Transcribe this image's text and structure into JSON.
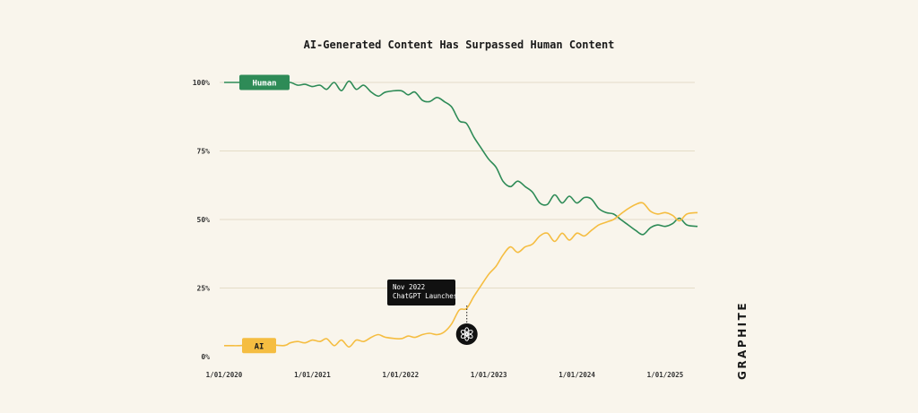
{
  "chart_data": {
    "type": "line",
    "title": "AI-Generated Content Has Surpassed Human Content",
    "xlabel": "",
    "ylabel": "",
    "ylim": [
      0,
      100
    ],
    "yticks": [
      "0%",
      "25%",
      "50%",
      "75%",
      "100%"
    ],
    "xticks": [
      "1/01/2020",
      "1/01/2021",
      "1/01/2022",
      "1/01/2023",
      "1/01/2024",
      "1/01/2025"
    ],
    "grid": true,
    "series": [
      {
        "name": "Human",
        "color": "#2e8b57",
        "points": [
          [
            "2020-01-01",
            100
          ],
          [
            "2020-02-01",
            100
          ],
          [
            "2020-03-01",
            100
          ],
          [
            "2020-06-01",
            100
          ],
          [
            "2020-09-01",
            99.5
          ],
          [
            "2020-10-01",
            100
          ],
          [
            "2020-11-01",
            99
          ],
          [
            "2020-12-01",
            99.3
          ],
          [
            "2021-01-01",
            98.5
          ],
          [
            "2021-02-01",
            99
          ],
          [
            "2021-03-01",
            97.5
          ],
          [
            "2021-04-01",
            100
          ],
          [
            "2021-05-01",
            97
          ],
          [
            "2021-06-01",
            100.5
          ],
          [
            "2021-07-01",
            97.5
          ],
          [
            "2021-08-01",
            99
          ],
          [
            "2021-09-01",
            96.5
          ],
          [
            "2021-10-01",
            95
          ],
          [
            "2021-11-01",
            96.5
          ],
          [
            "2022-01-01",
            97
          ],
          [
            "2022-02-01",
            95.5
          ],
          [
            "2022-03-01",
            96.5
          ],
          [
            "2022-04-01",
            93.5
          ],
          [
            "2022-05-01",
            93
          ],
          [
            "2022-06-01",
            94.5
          ],
          [
            "2022-07-01",
            93
          ],
          [
            "2022-08-01",
            91
          ],
          [
            "2022-09-01",
            86
          ],
          [
            "2022-10-01",
            85
          ],
          [
            "2022-11-01",
            80
          ],
          [
            "2022-12-01",
            76
          ],
          [
            "2023-01-01",
            72
          ],
          [
            "2023-02-01",
            69
          ],
          [
            "2023-03-01",
            64
          ],
          [
            "2023-04-01",
            62
          ],
          [
            "2023-05-01",
            64
          ],
          [
            "2023-06-01",
            62
          ],
          [
            "2023-07-01",
            60
          ],
          [
            "2023-08-01",
            56
          ],
          [
            "2023-09-01",
            55.5
          ],
          [
            "2023-10-01",
            59
          ],
          [
            "2023-11-01",
            56
          ],
          [
            "2023-12-01",
            58.5
          ],
          [
            "2024-01-01",
            56
          ],
          [
            "2024-02-01",
            58
          ],
          [
            "2024-03-01",
            57.5
          ],
          [
            "2024-04-01",
            54
          ],
          [
            "2024-05-01",
            52.5
          ],
          [
            "2024-06-01",
            52
          ],
          [
            "2024-07-01",
            50
          ],
          [
            "2024-08-01",
            48
          ],
          [
            "2024-09-01",
            46
          ],
          [
            "2024-10-01",
            44.5
          ],
          [
            "2024-11-01",
            47
          ],
          [
            "2024-12-01",
            48
          ],
          [
            "2025-01-01",
            47.5
          ],
          [
            "2025-02-01",
            48.5
          ],
          [
            "2025-03-01",
            50.5
          ],
          [
            "2025-04-01",
            48
          ],
          [
            "2025-05-15",
            47.5
          ]
        ]
      },
      {
        "name": "AI",
        "color": "#f5bd41",
        "points": [
          [
            "2020-01-01",
            4
          ],
          [
            "2020-02-01",
            4
          ],
          [
            "2020-03-01",
            4
          ],
          [
            "2020-06-01",
            4.5
          ],
          [
            "2020-09-01",
            4
          ],
          [
            "2020-10-01",
            5
          ],
          [
            "2020-11-01",
            5.5
          ],
          [
            "2020-12-01",
            5
          ],
          [
            "2021-01-01",
            6
          ],
          [
            "2021-02-01",
            5.5
          ],
          [
            "2021-03-01",
            6.5
          ],
          [
            "2021-04-01",
            4
          ],
          [
            "2021-05-01",
            6
          ],
          [
            "2021-06-01",
            3.5
          ],
          [
            "2021-07-01",
            6
          ],
          [
            "2021-08-01",
            5.5
          ],
          [
            "2021-09-01",
            7
          ],
          [
            "2021-10-01",
            8
          ],
          [
            "2021-11-01",
            7
          ],
          [
            "2022-01-01",
            6.5
          ],
          [
            "2022-02-01",
            7.5
          ],
          [
            "2022-03-01",
            7
          ],
          [
            "2022-04-01",
            8
          ],
          [
            "2022-05-01",
            8.5
          ],
          [
            "2022-06-01",
            8
          ],
          [
            "2022-07-01",
            9
          ],
          [
            "2022-08-01",
            12
          ],
          [
            "2022-09-01",
            17
          ],
          [
            "2022-10-01",
            17.5
          ],
          [
            "2022-11-01",
            22
          ],
          [
            "2022-12-01",
            26
          ],
          [
            "2023-01-01",
            30
          ],
          [
            "2023-02-01",
            33
          ],
          [
            "2023-03-01",
            37
          ],
          [
            "2023-04-01",
            40
          ],
          [
            "2023-05-01",
            38
          ],
          [
            "2023-06-01",
            40
          ],
          [
            "2023-07-01",
            41
          ],
          [
            "2023-08-01",
            44
          ],
          [
            "2023-09-01",
            45
          ],
          [
            "2023-10-01",
            42
          ],
          [
            "2023-11-01",
            45
          ],
          [
            "2023-12-01",
            42.5
          ],
          [
            "2024-01-01",
            45
          ],
          [
            "2024-02-01",
            44
          ],
          [
            "2024-03-01",
            46
          ],
          [
            "2024-04-01",
            48
          ],
          [
            "2024-05-01",
            49
          ],
          [
            "2024-06-01",
            50
          ],
          [
            "2024-07-01",
            52
          ],
          [
            "2024-08-01",
            54
          ],
          [
            "2024-09-01",
            55.5
          ],
          [
            "2024-10-01",
            56
          ],
          [
            "2024-11-01",
            53
          ],
          [
            "2024-12-01",
            52
          ],
          [
            "2025-01-01",
            52.5
          ],
          [
            "2025-02-01",
            51.5
          ],
          [
            "2025-03-01",
            49.5
          ],
          [
            "2025-04-01",
            52
          ],
          [
            "2025-05-15",
            52.5
          ]
        ]
      }
    ],
    "annotations": [
      {
        "x": "2022-11-01",
        "lines": [
          "Nov 2022",
          "ChatGPT Launches"
        ],
        "icon": "openai-logo-icon"
      }
    ]
  },
  "brand": "GRAPHITE"
}
